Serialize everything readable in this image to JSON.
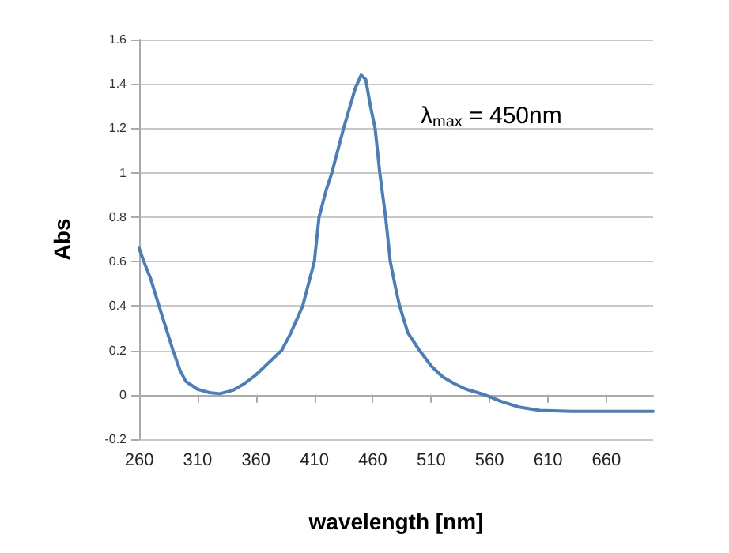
{
  "chart_data": {
    "type": "line",
    "xlabel": "wavelength [nm]",
    "ylabel": "Abs",
    "x": [
      260,
      264,
      270,
      277,
      289,
      295,
      300,
      310,
      320,
      329,
      340,
      350,
      360,
      370,
      382,
      390,
      400,
      410,
      414,
      420,
      425,
      435,
      445,
      450,
      454,
      458,
      462,
      466,
      471,
      475,
      480,
      483,
      490,
      500,
      510,
      520,
      530,
      540,
      556,
      570,
      585,
      603,
      630,
      700
    ],
    "series": [
      {
        "color": "#4a7ebb",
        "values": [
          0.66,
          0.6,
          0.52,
          0.4,
          0.2,
          0.11,
          0.06,
          0.025,
          0.01,
          0.005,
          0.02,
          0.05,
          0.09,
          0.14,
          0.2,
          0.28,
          0.4,
          0.6,
          0.8,
          0.92,
          1.0,
          1.2,
          1.38,
          1.44,
          1.42,
          1.3,
          1.2,
          1.0,
          0.8,
          0.6,
          0.47,
          0.4,
          0.28,
          0.2,
          0.13,
          0.08,
          0.05,
          0.025,
          0,
          -0.03,
          -0.055,
          -0.07,
          -0.075,
          -0.075
        ]
      }
    ],
    "xlim": [
      260,
      700
    ],
    "xticks": [
      260,
      310,
      360,
      410,
      460,
      510,
      560,
      610,
      660
    ],
    "ylim": [
      -0.2,
      1.6
    ],
    "yticks": [
      -0.2,
      0,
      0.2,
      0.4,
      0.6,
      0.8,
      1,
      1.2,
      1.4,
      1.6
    ],
    "grid": "y",
    "marker": "none",
    "line_style": "solid",
    "annotations": [
      "λ$_{max}$ = 450nm"
    ]
  }
}
